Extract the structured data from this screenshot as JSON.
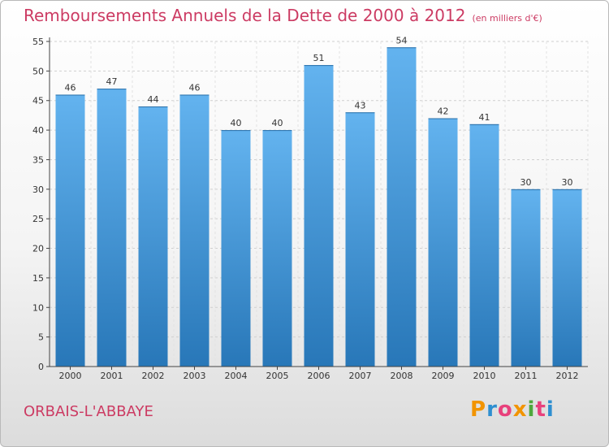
{
  "header": {
    "title": "Remboursements Annuels de la Dette de 2000 à 2012",
    "unit": "(en milliers d'€)"
  },
  "footer": {
    "city": "ORBAIS-L'ABBAYE",
    "brand": "Proxiti",
    "brand_colors": [
      "#f29400",
      "#2e8fd0",
      "#e8417c",
      "#f29400",
      "#4fa83d",
      "#e8417c",
      "#2e8fd0"
    ]
  },
  "chart_data": {
    "type": "bar",
    "title": "Remboursements Annuels de la Dette de 2000 à 2012",
    "subtitle": "(en milliers d'€)",
    "xlabel": "",
    "ylabel": "",
    "categories": [
      "2000",
      "2001",
      "2002",
      "2003",
      "2004",
      "2005",
      "2006",
      "2007",
      "2008",
      "2009",
      "2010",
      "2011",
      "2012"
    ],
    "values": [
      46,
      47,
      44,
      46,
      40,
      40,
      51,
      43,
      54,
      42,
      41,
      30,
      30
    ],
    "ylim": [
      0,
      55
    ],
    "yticks": [
      0,
      5,
      10,
      15,
      20,
      25,
      30,
      35,
      40,
      45,
      50,
      55
    ],
    "grid": true,
    "colors": {
      "bar_light": "#63b3ef",
      "bar_dark": "#2877b8",
      "title": "#cc3b63"
    }
  }
}
